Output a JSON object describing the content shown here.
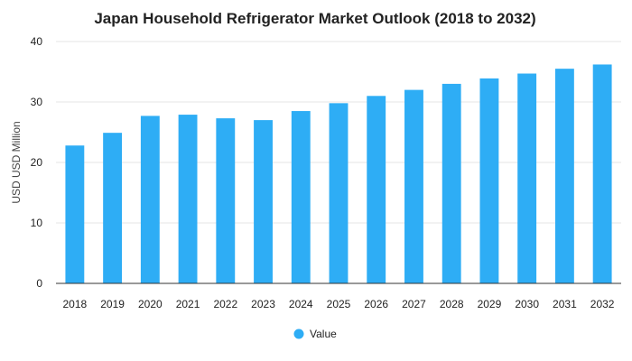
{
  "chart_data": {
    "type": "bar",
    "title": "Japan Household Refrigerator Market Outlook (2018 to 2032)",
    "xlabel": "",
    "ylabel": "USD USD Million",
    "ylim": [
      0,
      40
    ],
    "yticks": [
      0,
      10,
      20,
      30,
      40
    ],
    "grid": true,
    "legend_position": "bottom",
    "bar_color": "#2EADF5",
    "categories": [
      "2018",
      "2019",
      "2020",
      "2021",
      "2022",
      "2023",
      "2024",
      "2025",
      "2026",
      "2027",
      "2028",
      "2029",
      "2030",
      "2031",
      "2032"
    ],
    "series": [
      {
        "name": "Value",
        "values": [
          22.8,
          24.9,
          27.7,
          27.9,
          27.3,
          27.0,
          28.5,
          29.8,
          31.0,
          32.0,
          33.0,
          33.9,
          34.7,
          35.5,
          36.2
        ]
      }
    ]
  }
}
